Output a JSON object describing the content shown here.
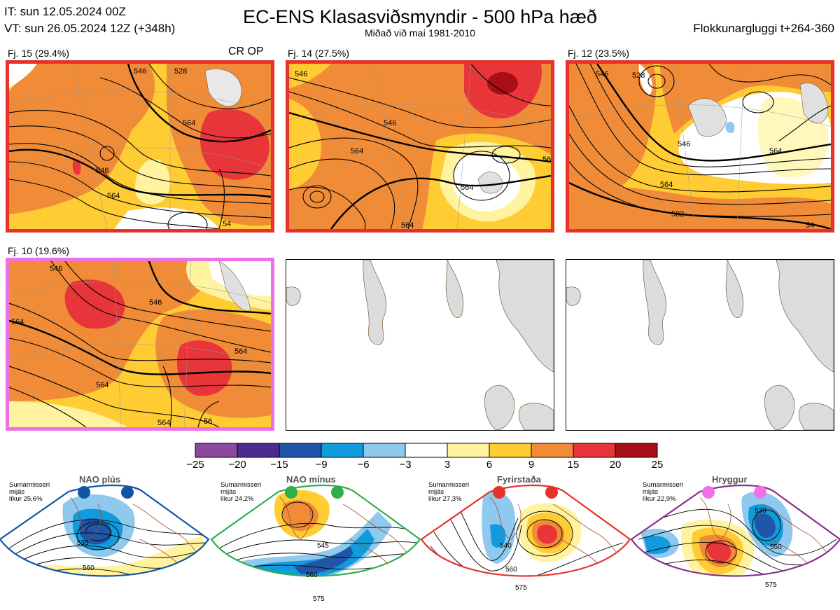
{
  "header": {
    "it_line": "IT: sun 12.05.2024 00Z",
    "vt_line": "VT: sun 26.05.2024 12Z  (+348h)",
    "title": "EC-ENS Klasasviðsmyndir - 500 hPa hæð",
    "subtitle": "Miðað við maí 1981-2010",
    "window": "Flokkunargluggi t+264-360"
  },
  "panels": [
    {
      "label": "Fj. 15 (29.4%)",
      "op_label": "CR OP",
      "border_color": "#e8312b",
      "contours": [
        "546",
        "528",
        "564",
        "546",
        "564",
        "54"
      ]
    },
    {
      "label": "Fj. 14 (27.5%)",
      "op_label": "",
      "border_color": "#e8312b",
      "contours": [
        "546",
        "546",
        "564",
        "564",
        "564",
        "56"
      ]
    },
    {
      "label": "Fj. 12 (23.5%)",
      "op_label": "",
      "border_color": "#e8312b",
      "contours": [
        "546",
        "528",
        "546",
        "564",
        "564",
        "582",
        "54"
      ]
    },
    {
      "label": "Fj. 10 (19.6%)",
      "op_label": "",
      "border_color": "#f070e8",
      "contours": [
        "546",
        "546",
        "564",
        "564",
        "564",
        "564",
        "56"
      ]
    }
  ],
  "colorbar": {
    "ticks": [
      "−25",
      "−20",
      "−15",
      "−9",
      "−6",
      "−3",
      "3",
      "6",
      "9",
      "15",
      "20",
      "25"
    ],
    "colors": [
      "#8b4a9e",
      "#4a2d8f",
      "#1f56a8",
      "#129bdc",
      "#8fc9ee",
      "#ffffff",
      "#fff3a0",
      "#ffcc33",
      "#f08c38",
      "#e8353a",
      "#a50f15"
    ]
  },
  "regimes": [
    {
      "name": "NAO plús",
      "desc": "Sumarmisseri\nmijás\nlíkur 25,6%",
      "color": "#1155a8",
      "contours": [
        "535",
        "560"
      ]
    },
    {
      "name": "NAO mínus",
      "desc": "Sumarmisseri\nmijás\nlíkur 24,2%",
      "color": "#2eaf4a",
      "contours": [
        "545",
        "560",
        "575"
      ]
    },
    {
      "name": "Fyrirstaða",
      "desc": "Sumarmisseri\nmijás\nlíkur 27,3%",
      "color": "#e8312b",
      "contours": [
        "540",
        "560",
        "575"
      ]
    },
    {
      "name": "Hryggur",
      "desc": "Sumarmisseri\nmijás\nlíkur 22,9%",
      "color": "#f070e8",
      "contours": [
        "530",
        "550",
        "575"
      ]
    }
  ]
}
